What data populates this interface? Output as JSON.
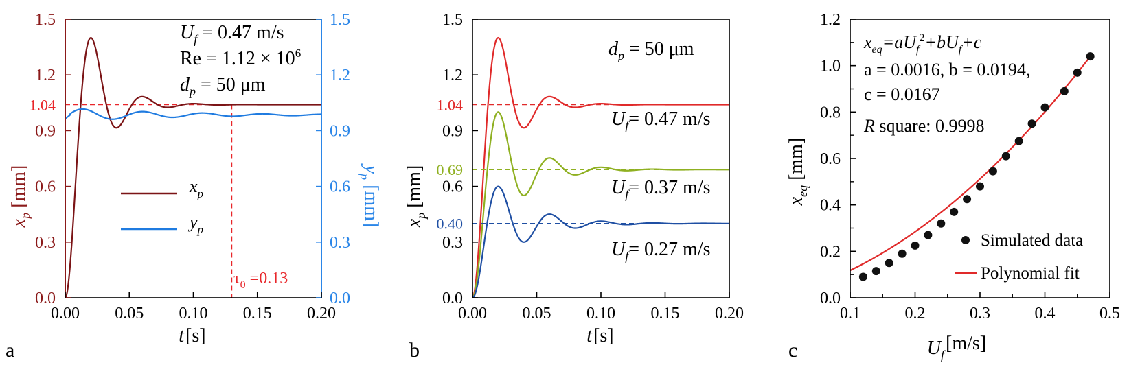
{
  "panels": {
    "a": "a",
    "b": "b",
    "c": "c"
  },
  "chart_data": [
    {
      "type": "line",
      "panel": "a",
      "xlabel": {
        "main": "t",
        "unit": " [s]"
      },
      "ylabel_left": {
        "main": "x",
        "sub": "p",
        "unit": " [mm]"
      },
      "ylabel_right": {
        "main": "y",
        "sub": "p",
        "unit": " [mm]"
      },
      "xlim": [
        0,
        0.2
      ],
      "ylim": [
        0,
        1.5
      ],
      "ylim_right": [
        0,
        1.5
      ],
      "xticks": [
        "0.00",
        "0.05",
        "0.10",
        "0.15",
        "0.20"
      ],
      "yticks_left": [
        "0.0",
        "0.3",
        "0.6",
        "0.9",
        "1.2",
        "1.5"
      ],
      "yticks_right": [
        "0.0",
        "0.3",
        "0.6",
        "0.9",
        "1.2",
        "1.5"
      ],
      "reference_line": {
        "y": 1.04,
        "label": "1.04",
        "color": "#e8262a"
      },
      "vertical_line": {
        "x": 0.13,
        "label_main": "τ",
        "label_sub": "0",
        "label_rest": " =0.13",
        "color": "#e8262a"
      },
      "annotations": {
        "line1_main": "U",
        "line1_sub": "f",
        "line1_rest": " = 0.47 m/s",
        "line2_main": "Re = 1.12 × 10",
        "line2_sup": "6",
        "line3_main": "d",
        "line3_sub": "p",
        "line3_rest": " = 50 μm"
      },
      "series": [
        {
          "name": "x_p",
          "label_main": "x",
          "label_sub": "p",
          "axis": "left",
          "color": "#7b1416",
          "y_final": 1.04,
          "peak": 1.4,
          "t_peak": 0.02,
          "damping": 0.28
        },
        {
          "name": "y_p",
          "label_main": "y",
          "label_sub": "p",
          "axis": "right",
          "color": "#1f7be0",
          "y_final": 0.985,
          "amplitude": 0.035,
          "t_peak": 0.02,
          "damping": 0.3
        }
      ],
      "colors": {
        "left_axis": "#8b1a1a",
        "right_axis": "#2b86e8"
      }
    },
    {
      "type": "line",
      "panel": "b",
      "xlabel": {
        "main": "t",
        "unit": " [s]"
      },
      "ylabel": {
        "main": "x",
        "sub": "p",
        "unit": " [mm]"
      },
      "xlim": [
        0,
        0.2
      ],
      "ylim": [
        0,
        1.5
      ],
      "xticks": [
        "0.00",
        "0.05",
        "0.10",
        "0.15",
        "0.20"
      ],
      "yticks": [
        "0.0",
        "0.3",
        "0.6",
        "0.9",
        "1.2",
        "1.5"
      ],
      "annotation": {
        "main": "d",
        "sub": "p",
        "rest": " = 50 μm"
      },
      "series": [
        {
          "name": "U_f = 0.47 m/s",
          "label_main": "U",
          "label_sub": "f",
          "label_rest": "= 0.47 m/s",
          "color": "#e02a2a",
          "y_final": 1.04,
          "peak": 1.4,
          "t_peak": 0.02,
          "damping": 0.28,
          "ref_label": "1.04"
        },
        {
          "name": "U_f = 0.37 m/s",
          "label_main": "U",
          "label_sub": "f",
          "label_rest": "= 0.37 m/s",
          "color": "#8fb021",
          "y_final": 0.69,
          "peak": 1.0,
          "t_peak": 0.02,
          "damping": 0.28,
          "ref_label": "0.69"
        },
        {
          "name": "U_f = 0.27 m/s",
          "label_main": "U",
          "label_sub": "f",
          "label_rest": "= 0.27 m/s",
          "color": "#1f4fa3",
          "y_final": 0.4,
          "peak": 0.6,
          "t_peak": 0.02,
          "damping": 0.28,
          "ref_label": "0.40"
        }
      ]
    },
    {
      "type": "scatter",
      "panel": "c",
      "xlabel": {
        "main": "U",
        "sub": "f",
        "unit": " [m/s]"
      },
      "ylabel": {
        "main": "x",
        "sub": "eq",
        "unit": " [mm]"
      },
      "xlim": [
        0.1,
        0.5
      ],
      "ylim": [
        0,
        1.2
      ],
      "xticks": [
        "0.1",
        "0.2",
        "0.3",
        "0.4",
        "0.5"
      ],
      "yticks": [
        "0.0",
        "0.2",
        "0.4",
        "0.6",
        "0.8",
        "1.0",
        "1.2"
      ],
      "equation": {
        "x": "x",
        "eq": "eq",
        "eq_rest": "=aU",
        "f1": "f",
        "sq": "2",
        "plus_b": "+bU",
        "f2": "f",
        "plus_c": "+c"
      },
      "coeffs_line1": "a = 0.0016, b = 0.0194,",
      "coeffs_line2": "c = 0.0167",
      "rsquare": {
        "main": "R",
        "rest": " square: 0.9998"
      },
      "fit": {
        "a": 0.0016,
        "b": 0.0194,
        "c": 0.0167,
        "color": "#e02a2a",
        "x_range": [
          0.1,
          0.47
        ]
      },
      "points": {
        "x": [
          0.12,
          0.14,
          0.16,
          0.18,
          0.2,
          0.22,
          0.24,
          0.26,
          0.28,
          0.3,
          0.32,
          0.34,
          0.36,
          0.38,
          0.4,
          0.43,
          0.45,
          0.47
        ],
        "y": [
          0.09,
          0.115,
          0.15,
          0.19,
          0.225,
          0.27,
          0.32,
          0.37,
          0.425,
          0.48,
          0.545,
          0.61,
          0.675,
          0.75,
          0.82,
          0.89,
          0.97,
          1.04
        ],
        "color": "#111111"
      },
      "legend": {
        "points": "Simulated data",
        "fit": "Polynomial fit"
      }
    }
  ]
}
